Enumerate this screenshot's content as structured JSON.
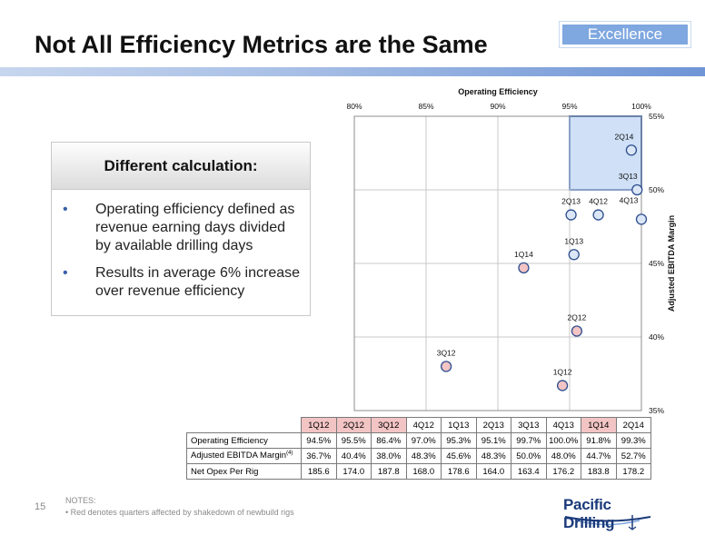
{
  "header": {
    "badge": "Excellence",
    "title": "Not All Efficiency Metrics are the Same"
  },
  "callout": {
    "heading": "Different calculation:",
    "bullets": [
      "Operating efficiency defined as revenue earning days divided by available drilling days",
      "Results in average 6% increase over revenue efficiency"
    ]
  },
  "chart_data": {
    "type": "scatter",
    "title": "Operating Efficiency",
    "xlabel": "Operating Efficiency",
    "ylabel": "Adjusted EBITDA Margin",
    "xlim": [
      80,
      100
    ],
    "ylim": [
      35,
      55
    ],
    "x_ticks": [
      "80%",
      "85%",
      "90%",
      "95%",
      "100%"
    ],
    "y_ticks": [
      "35%",
      "40%",
      "45%",
      "50%",
      "55%"
    ],
    "grid": true,
    "highlight_region": {
      "x": [
        95,
        100
      ],
      "y": [
        50,
        55
      ],
      "color": "#cfe0f7"
    },
    "colors": {
      "red": "#f2c4c4",
      "blue": "#dbe6f6"
    },
    "points": [
      {
        "label": "1Q12",
        "x": 94.5,
        "y": 36.7,
        "group": "red"
      },
      {
        "label": "2Q12",
        "x": 95.5,
        "y": 40.4,
        "group": "red"
      },
      {
        "label": "3Q12",
        "x": 86.4,
        "y": 38.0,
        "group": "red"
      },
      {
        "label": "4Q12",
        "x": 97.0,
        "y": 48.3,
        "group": "blue"
      },
      {
        "label": "1Q13",
        "x": 95.3,
        "y": 45.6,
        "group": "blue"
      },
      {
        "label": "2Q13",
        "x": 95.1,
        "y": 48.3,
        "group": "blue"
      },
      {
        "label": "3Q13",
        "x": 99.7,
        "y": 50.0,
        "group": "blue"
      },
      {
        "label": "4Q13",
        "x": 100.0,
        "y": 48.0,
        "group": "blue"
      },
      {
        "label": "1Q14",
        "x": 91.8,
        "y": 44.7,
        "group": "red"
      },
      {
        "label": "2Q14",
        "x": 99.3,
        "y": 52.7,
        "group": "blue"
      }
    ]
  },
  "table": {
    "columns": [
      {
        "label": "1Q12",
        "red": true
      },
      {
        "label": "2Q12",
        "red": true
      },
      {
        "label": "3Q12",
        "red": true
      },
      {
        "label": "4Q12",
        "red": false
      },
      {
        "label": "1Q13",
        "red": false
      },
      {
        "label": "2Q13",
        "red": false
      },
      {
        "label": "3Q13",
        "red": false
      },
      {
        "label": "4Q13",
        "red": false
      },
      {
        "label": "1Q14",
        "red": true
      },
      {
        "label": "2Q14",
        "red": false
      }
    ],
    "rows": [
      {
        "label": "Operating Efficiency",
        "values": [
          "94.5%",
          "95.5%",
          "86.4%",
          "97.0%",
          "95.3%",
          "95.1%",
          "99.7%",
          "100.0%",
          "91.8%",
          "99.3%"
        ]
      },
      {
        "label": "Adjusted EBITDA Margin",
        "sup": "(4)",
        "values": [
          "36.7%",
          "40.4%",
          "38.0%",
          "48.3%",
          "45.6%",
          "48.3%",
          "50.0%",
          "48.0%",
          "44.7%",
          "52.7%"
        ]
      },
      {
        "label": "Net Opex Per Rig",
        "values": [
          "185.6",
          "174.0",
          "187.8",
          "168.0",
          "178.6",
          "164.0",
          "163.4",
          "176.2",
          "183.8",
          "178.2"
        ]
      }
    ]
  },
  "footer": {
    "page_number": "15",
    "notes_heading": "NOTES:",
    "note": "Red denotes quarters affected by shakedown of newbuild rigs",
    "logo_text": "Pacific Drilling"
  }
}
